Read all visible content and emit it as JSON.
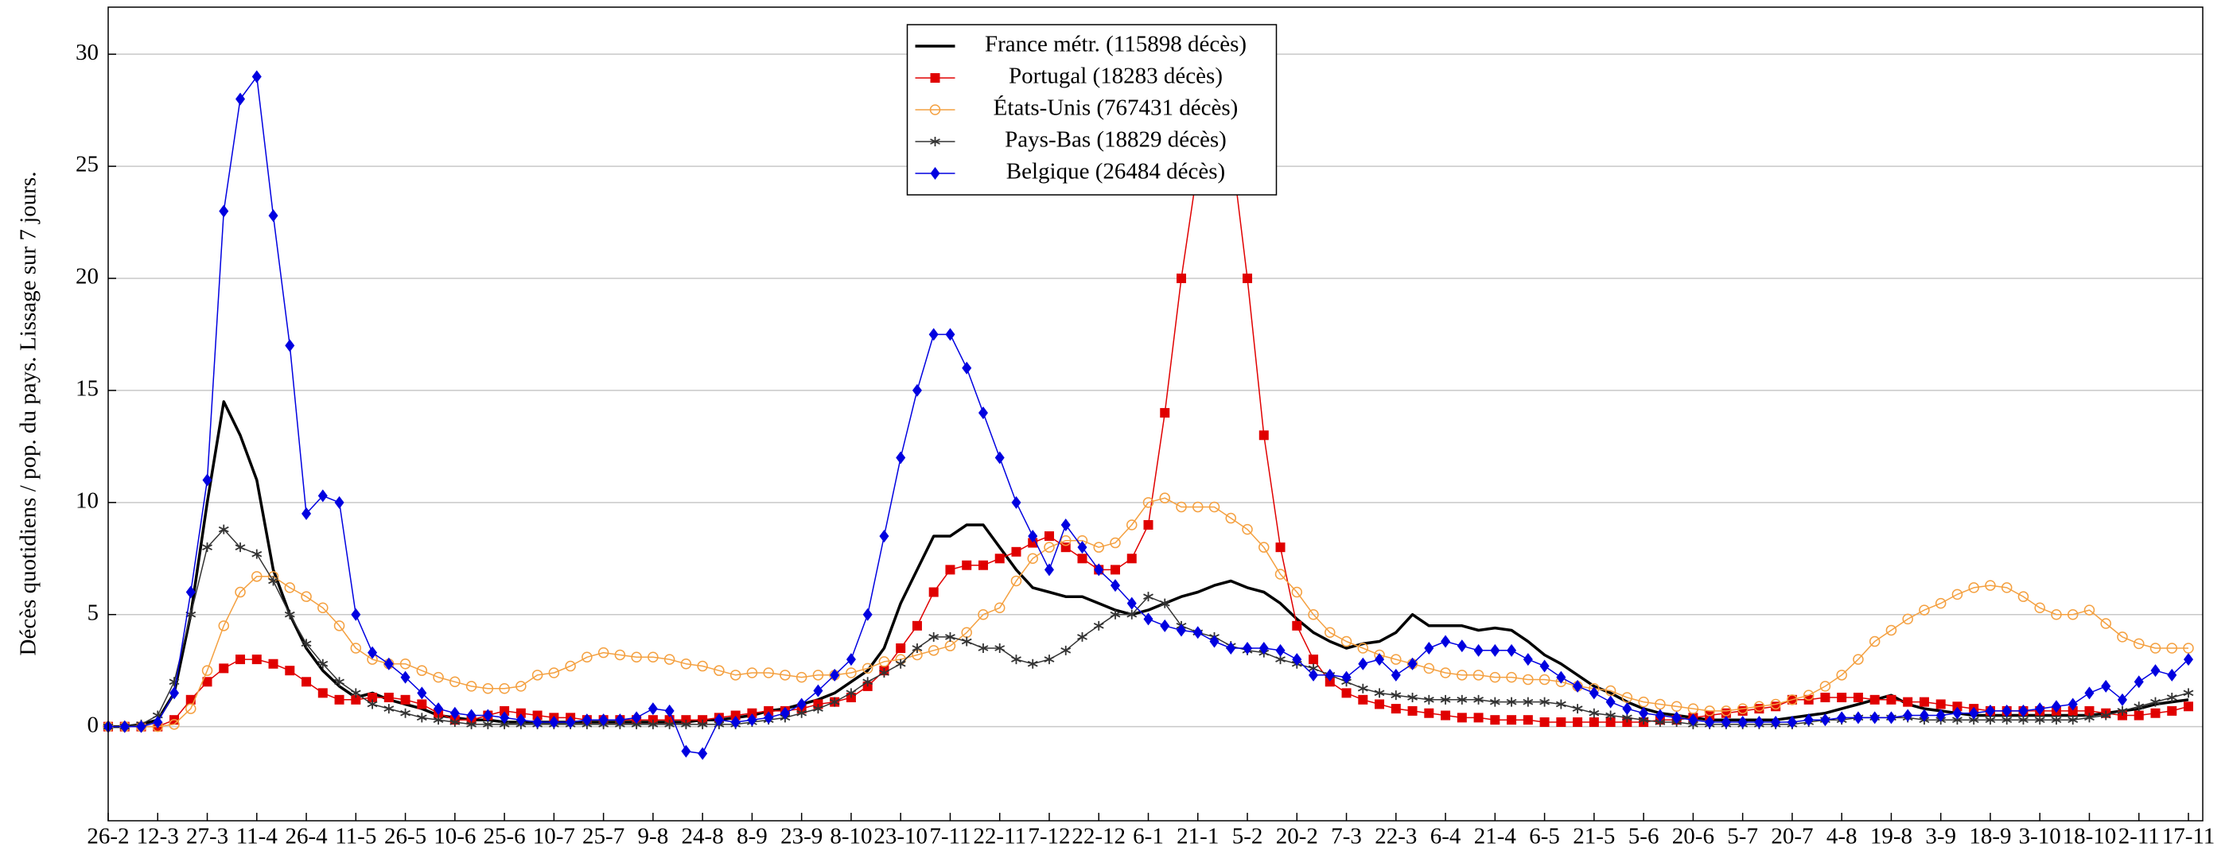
{
  "chart_data": {
    "type": "line",
    "ylabel": "Décès quotidiens / pop. du pays. Lissage sur 7 jours.",
    "categories": [
      "26-2",
      null,
      null,
      "12-3",
      null,
      null,
      "27-3",
      null,
      null,
      "11-4",
      null,
      null,
      "26-4",
      null,
      null,
      "11-5",
      null,
      null,
      "26-5",
      null,
      null,
      "10-6",
      null,
      null,
      "25-6",
      null,
      null,
      "10-7",
      null,
      null,
      "25-7",
      null,
      null,
      "9-8",
      null,
      null,
      "24-8",
      null,
      null,
      "8-9",
      null,
      null,
      "23-9",
      null,
      null,
      "8-10",
      null,
      null,
      "23-10",
      null,
      null,
      "7-11",
      null,
      null,
      "22-11",
      null,
      null,
      "7-12",
      null,
      null,
      "22-12",
      null,
      null,
      "6-1",
      null,
      null,
      "21-1",
      null,
      null,
      "5-2",
      null,
      null,
      "20-2",
      null,
      null,
      "7-3",
      null,
      null,
      "22-3",
      null,
      null,
      "6-4",
      null,
      null,
      "21-4",
      null,
      null,
      "6-5",
      null,
      null,
      "21-5",
      null,
      null,
      "5-6",
      null,
      null,
      "20-6",
      null,
      null,
      "5-7",
      null,
      null,
      "20-7",
      null,
      null,
      "4-8",
      null,
      null,
      "19-8",
      null,
      null,
      "3-9",
      null,
      null,
      "18-9",
      null,
      null,
      "3-10",
      null,
      null,
      "18-10",
      null,
      null,
      "2-11",
      null,
      null,
      "17-11"
    ],
    "series": [
      {
        "name": "France métr. (115898 décès)",
        "color": "#000000",
        "marker": "none",
        "values": [
          0,
          0,
          0.1,
          0.3,
          1.5,
          5,
          10,
          14.5,
          13,
          11,
          7,
          5,
          3.5,
          2.5,
          1.8,
          1.3,
          1.5,
          1.2,
          1.0,
          0.8,
          0.5,
          0.4,
          0.3,
          0.3,
          0.2,
          0.2,
          0.2,
          0.2,
          0.2,
          0.2,
          0.2,
          0.2,
          0.2,
          0.2,
          0.2,
          0.2,
          0.3,
          0.3,
          0.4,
          0.5,
          0.7,
          0.8,
          1.0,
          1.2,
          1.5,
          2,
          2.5,
          3.5,
          5.5,
          7,
          8.5,
          8.5,
          9,
          9,
          8,
          7,
          6.2,
          6,
          5.8,
          5.8,
          5.5,
          5.2,
          5,
          5.2,
          5.5,
          5.8,
          6,
          6.3,
          6.5,
          6.2,
          6,
          5.5,
          4.8,
          4.2,
          3.8,
          3.5,
          3.7,
          3.8,
          4.2,
          5,
          4.5,
          4.5,
          4.5,
          4.3,
          4.4,
          4.3,
          3.8,
          3.2,
          2.8,
          2.3,
          1.8,
          1.5,
          1.1,
          0.8,
          0.6,
          0.5,
          0.4,
          0.3,
          0.3,
          0.3,
          0.3,
          0.3,
          0.4,
          0.5,
          0.6,
          0.8,
          1.0,
          1.2,
          1.4,
          1.0,
          0.8,
          0.7,
          0.6,
          0.5,
          0.5,
          0.5,
          0.5,
          0.5,
          0.5,
          0.5,
          0.5,
          0.6,
          0.7,
          0.8,
          1.0,
          1.1,
          1.2
        ]
      },
      {
        "name": "Portugal (18283 décès)",
        "color": "#e00000",
        "marker": "square",
        "values": [
          0,
          0,
          0,
          0,
          0.3,
          1.2,
          2,
          2.6,
          3,
          3,
          2.8,
          2.5,
          2,
          1.5,
          1.2,
          1.2,
          1.3,
          1.3,
          1.2,
          1.0,
          0.6,
          0.3,
          0.3,
          0.5,
          0.7,
          0.6,
          0.5,
          0.4,
          0.4,
          0.3,
          0.3,
          0.3,
          0.3,
          0.3,
          0.3,
          0.3,
          0.3,
          0.4,
          0.5,
          0.6,
          0.7,
          0.7,
          0.8,
          1.0,
          1.1,
          1.3,
          1.8,
          2.5,
          3.5,
          4.5,
          6,
          7,
          7.2,
          7.2,
          7.5,
          7.8,
          8.2,
          8.5,
          8,
          7.5,
          7,
          7,
          7.5,
          9,
          14,
          20,
          25,
          27.5,
          26,
          20,
          13,
          8,
          4.5,
          3,
          2,
          1.5,
          1.2,
          1.0,
          0.8,
          0.7,
          0.6,
          0.5,
          0.4,
          0.4,
          0.3,
          0.3,
          0.3,
          0.2,
          0.2,
          0.2,
          0.2,
          0.2,
          0.2,
          0.2,
          0.3,
          0.3,
          0.4,
          0.5,
          0.6,
          0.7,
          0.8,
          0.9,
          1.2,
          1.2,
          1.3,
          1.3,
          1.3,
          1.2,
          1.2,
          1.1,
          1.1,
          1.0,
          0.9,
          0.8,
          0.7,
          0.7,
          0.7,
          0.7,
          0.7,
          0.7,
          0.7,
          0.6,
          0.5,
          0.5,
          0.6,
          0.7,
          0.9
        ]
      },
      {
        "name": "États-Unis (767431 décès)",
        "color": "#f4a040",
        "marker": "circle",
        "values": [
          0,
          0,
          0,
          0,
          0.1,
          0.8,
          2.5,
          4.5,
          6,
          6.7,
          6.7,
          6.2,
          5.8,
          5.3,
          4.5,
          3.5,
          3,
          2.8,
          2.8,
          2.5,
          2.2,
          2,
          1.8,
          1.7,
          1.7,
          1.8,
          2.3,
          2.4,
          2.7,
          3.1,
          3.3,
          3.2,
          3.1,
          3.1,
          3.0,
          2.8,
          2.7,
          2.5,
          2.3,
          2.4,
          2.4,
          2.3,
          2.2,
          2.3,
          2.3,
          2.4,
          2.6,
          2.9,
          3.0,
          3.2,
          3.4,
          3.6,
          4.2,
          5,
          5.3,
          6.5,
          7.5,
          8,
          8.3,
          8.3,
          8,
          8.2,
          9,
          10,
          10.2,
          9.8,
          9.8,
          9.8,
          9.3,
          8.8,
          8,
          6.8,
          6,
          5,
          4.2,
          3.8,
          3.5,
          3.2,
          3,
          2.8,
          2.6,
          2.4,
          2.3,
          2.3,
          2.2,
          2.2,
          2.1,
          2.1,
          2.0,
          1.8,
          1.7,
          1.6,
          1.3,
          1.1,
          1.0,
          0.9,
          0.8,
          0.7,
          0.7,
          0.8,
          0.9,
          1.0,
          1.2,
          1.4,
          1.8,
          2.3,
          3.0,
          3.8,
          4.3,
          4.8,
          5.2,
          5.5,
          5.9,
          6.2,
          6.3,
          6.2,
          5.8,
          5.3,
          5.0,
          5.0,
          5.2,
          4.6,
          4.0,
          3.7,
          3.5,
          3.5,
          3.5
        ]
      },
      {
        "name": "Pays-Bas (18829 décès)",
        "color": "#333333",
        "marker": "star",
        "values": [
          0,
          0,
          0.1,
          0.5,
          2,
          5,
          8,
          8.8,
          8,
          7.7,
          6.5,
          5,
          3.7,
          2.8,
          2.0,
          1.5,
          1.0,
          0.8,
          0.6,
          0.4,
          0.3,
          0.2,
          0.1,
          0.1,
          0.1,
          0.1,
          0.1,
          0.1,
          0.1,
          0.1,
          0.1,
          0.1,
          0.1,
          0.1,
          0.1,
          0.1,
          0.1,
          0.1,
          0.1,
          0.2,
          0.3,
          0.4,
          0.6,
          0.8,
          1.1,
          1.5,
          2.0,
          2.4,
          2.8,
          3.5,
          4,
          4,
          3.8,
          3.5,
          3.5,
          3,
          2.8,
          3,
          3.4,
          4,
          4.5,
          5,
          5,
          5.8,
          5.5,
          4.5,
          4.2,
          4,
          3.6,
          3.4,
          3.3,
          3.0,
          2.8,
          2.6,
          2.3,
          2.0,
          1.7,
          1.5,
          1.4,
          1.3,
          1.2,
          1.2,
          1.2,
          1.2,
          1.1,
          1.1,
          1.1,
          1.1,
          1.0,
          0.8,
          0.6,
          0.5,
          0.4,
          0.3,
          0.2,
          0.2,
          0.1,
          0.1,
          0.1,
          0.1,
          0.1,
          0.1,
          0.1,
          0.2,
          0.3,
          0.3,
          0.4,
          0.4,
          0.4,
          0.4,
          0.3,
          0.3,
          0.3,
          0.3,
          0.3,
          0.3,
          0.3,
          0.3,
          0.3,
          0.3,
          0.4,
          0.5,
          0.7,
          0.9,
          1.1,
          1.3,
          1.5
        ]
      },
      {
        "name": "Belgique (26484 décès)",
        "color": "#0000e0",
        "marker": "diamond",
        "values": [
          0,
          0,
          0,
          0.2,
          1.5,
          6,
          11,
          23,
          28,
          29,
          22.8,
          17,
          9.5,
          10.3,
          10,
          5,
          3.3,
          2.8,
          2.2,
          1.5,
          0.8,
          0.6,
          0.5,
          0.5,
          0.4,
          0.3,
          0.2,
          0.2,
          0.2,
          0.3,
          0.3,
          0.3,
          0.4,
          0.8,
          0.7,
          -1.1,
          -1.2,
          0.3,
          0.2,
          0.3,
          0.4,
          0.6,
          1,
          1.6,
          2.3,
          3,
          5,
          8.5,
          12,
          15,
          17.5,
          17.5,
          16,
          14,
          12,
          10,
          8.5,
          7,
          9,
          8,
          7,
          6.3,
          5.5,
          4.8,
          4.5,
          4.3,
          4.2,
          3.8,
          3.5,
          3.5,
          3.5,
          3.4,
          3,
          2.3,
          2.3,
          2.2,
          2.8,
          3.0,
          2.3,
          2.8,
          3.5,
          3.8,
          3.6,
          3.4,
          3.4,
          3.4,
          3.0,
          2.7,
          2.2,
          1.8,
          1.5,
          1.1,
          0.8,
          0.6,
          0.5,
          0.4,
          0.3,
          0.2,
          0.2,
          0.2,
          0.2,
          0.2,
          0.2,
          0.3,
          0.3,
          0.4,
          0.4,
          0.4,
          0.4,
          0.5,
          0.5,
          0.5,
          0.6,
          0.6,
          0.7,
          0.7,
          0.7,
          0.8,
          0.9,
          1.0,
          1.5,
          1.8,
          1.2,
          2,
          2.5,
          2.3,
          3.0
        ]
      }
    ],
    "ylim": [
      -4.2,
      32.1
    ],
    "yticks": [
      0,
      5,
      10,
      15,
      20,
      25,
      30
    ],
    "grid": true,
    "legend": "upper center"
  }
}
